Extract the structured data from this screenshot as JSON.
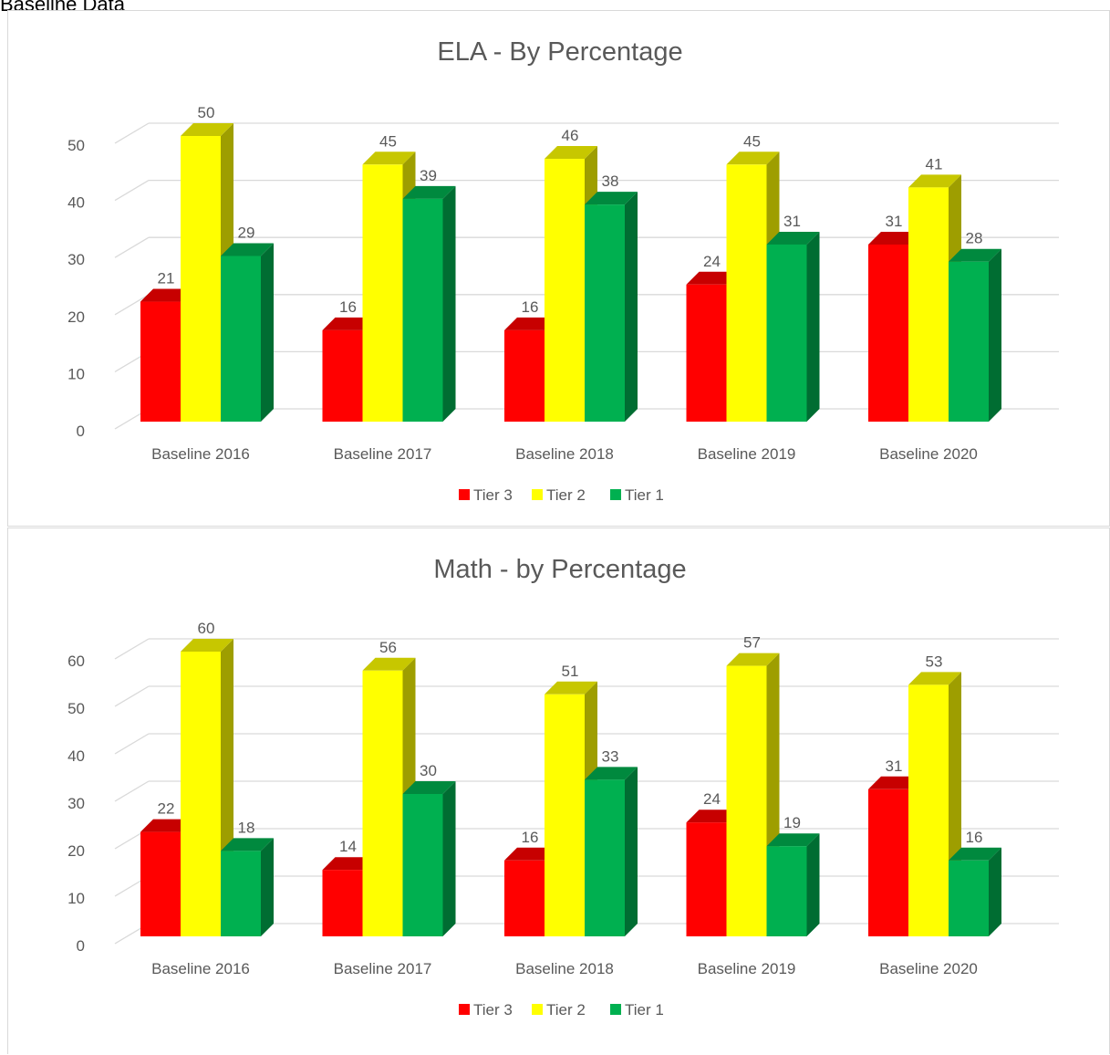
{
  "page": {
    "heading": "Baseline Data"
  },
  "chart_data": [
    {
      "type": "bar",
      "title": "ELA - By Percentage",
      "categories": [
        "Baseline 2016",
        "Baseline 2017",
        "Baseline 2018",
        "Baseline 2019",
        "Baseline 2020"
      ],
      "series": [
        {
          "name": "Tier 3",
          "values": [
            21,
            16,
            16,
            24,
            31
          ],
          "color": "#ff0000"
        },
        {
          "name": "Tier 2",
          "values": [
            50,
            45,
            46,
            45,
            41
          ],
          "color": "#ffff00"
        },
        {
          "name": "Tier 1",
          "values": [
            29,
            39,
            38,
            31,
            28
          ],
          "color": "#00b050"
        }
      ],
      "ylim": [
        0,
        50
      ],
      "yticks": [
        0,
        10,
        20,
        30,
        40,
        50
      ],
      "grid": true,
      "legend": "bottom",
      "style": "3d-clustered-column"
    },
    {
      "type": "bar",
      "title": "Math - by Percentage",
      "categories": [
        "Baseline 2016",
        "Baseline 2017",
        "Baseline 2018",
        "Baseline 2019",
        "Baseline 2020"
      ],
      "series": [
        {
          "name": "Tier 3",
          "values": [
            22,
            14,
            16,
            24,
            31
          ],
          "color": "#ff0000"
        },
        {
          "name": "Tier 2",
          "values": [
            60,
            56,
            51,
            57,
            53
          ],
          "color": "#ffff00"
        },
        {
          "name": "Tier 1",
          "values": [
            18,
            30,
            33,
            19,
            16
          ],
          "color": "#00b050"
        }
      ],
      "ylim": [
        0,
        60
      ],
      "yticks": [
        0,
        10,
        20,
        30,
        40,
        50,
        60
      ],
      "grid": true,
      "legend": "bottom",
      "style": "3d-clustered-column"
    }
  ]
}
